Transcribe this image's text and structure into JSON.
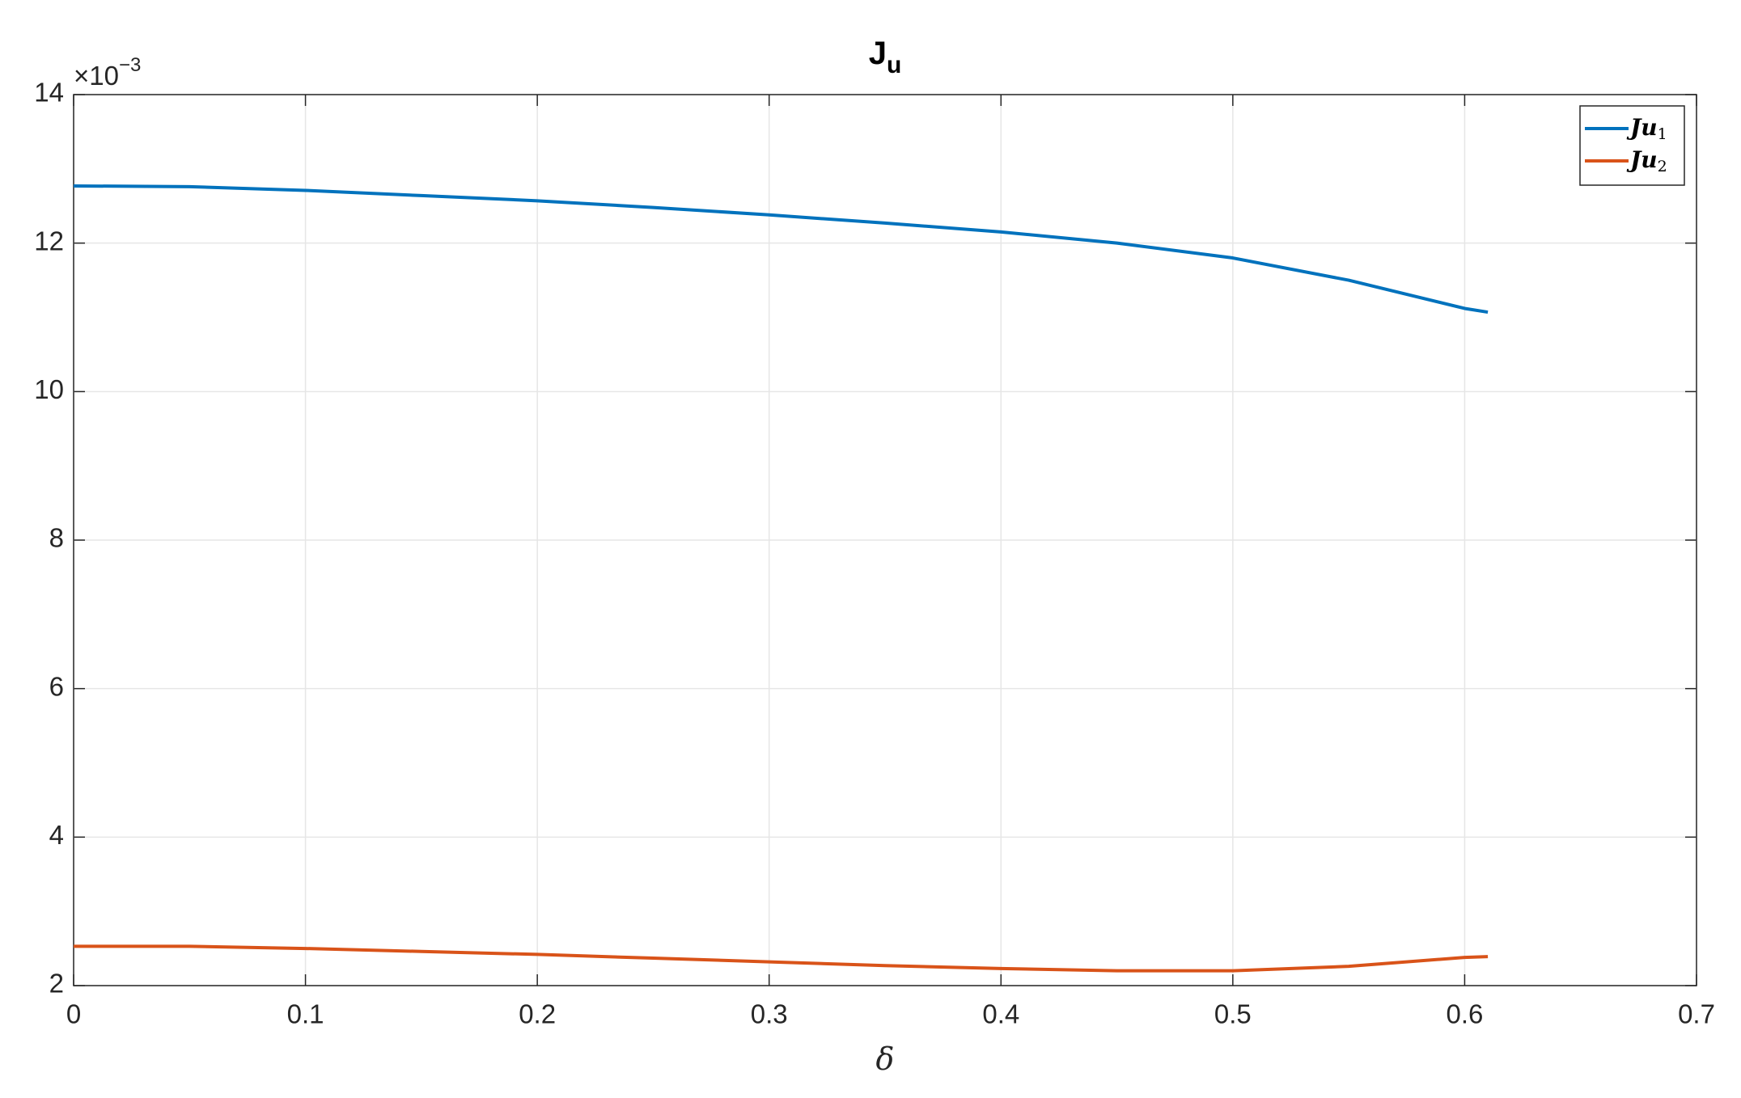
{
  "chart_data": {
    "type": "line",
    "title": "J",
    "title_subscript": "u",
    "xlabel": "δ",
    "y_multiplier": {
      "base": "×10",
      "exponent": "−3"
    },
    "x": [
      0,
      0.05,
      0.1,
      0.15,
      0.2,
      0.25,
      0.3,
      0.35,
      0.4,
      0.45,
      0.5,
      0.55,
      0.6,
      0.61
    ],
    "series": [
      {
        "name": "Ju",
        "name_subscript": "1",
        "color": "#0072bd",
        "values": [
          12.77,
          12.76,
          12.71,
          12.64,
          12.57,
          12.48,
          12.38,
          12.27,
          12.15,
          12.0,
          11.8,
          11.5,
          11.12,
          11.07
        ]
      },
      {
        "name": "Ju",
        "name_subscript": "2",
        "color": "#d95319",
        "values": [
          2.53,
          2.53,
          2.5,
          2.46,
          2.42,
          2.37,
          2.32,
          2.27,
          2.23,
          2.2,
          2.2,
          2.26,
          2.38,
          2.39
        ]
      }
    ],
    "xlim": [
      0,
      0.7
    ],
    "xticks": [
      0,
      0.1,
      0.2,
      0.3,
      0.4,
      0.5,
      0.6,
      0.7
    ],
    "ylim": [
      2,
      14
    ],
    "yticks": [
      2,
      4,
      6,
      8,
      10,
      12,
      14
    ],
    "grid": true,
    "legend": "top-right"
  }
}
